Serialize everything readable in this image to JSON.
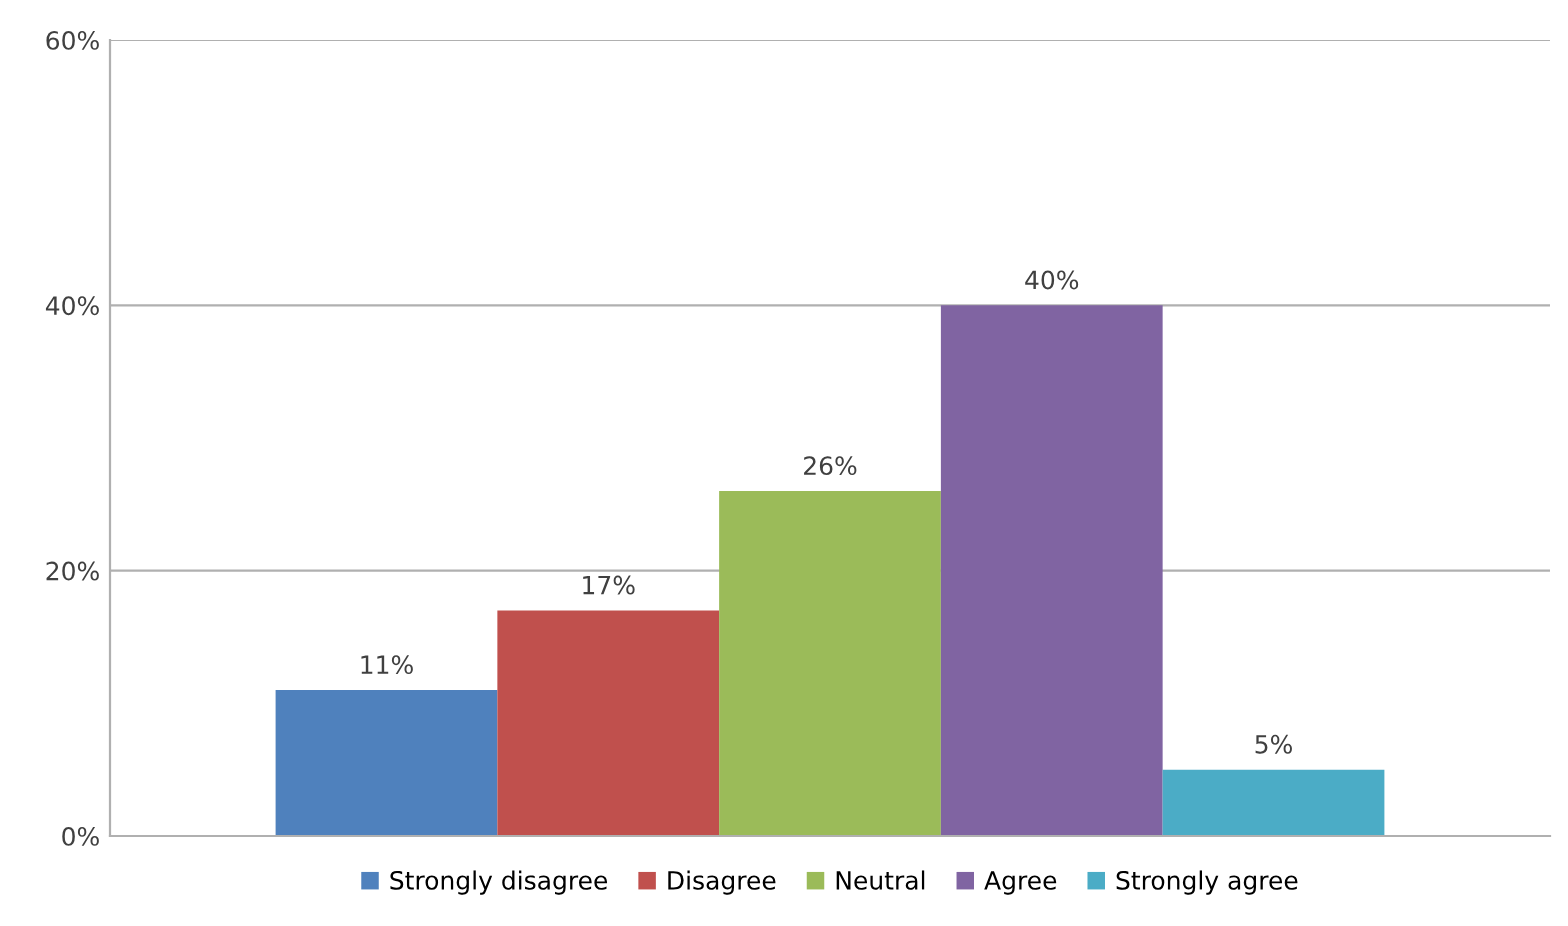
{
  "chart_data": {
    "type": "bar",
    "categories": [
      null
    ],
    "series": [
      {
        "name": "Strongly disagree",
        "color": "#4f81bd",
        "values": [
          11
        ],
        "value_labels": [
          "11%"
        ]
      },
      {
        "name": "Disagree",
        "color": "#c0504d",
        "values": [
          17
        ],
        "value_labels": [
          "17%"
        ]
      },
      {
        "name": "Neutral",
        "color": "#9bbb59",
        "values": [
          26
        ],
        "value_labels": [
          "26%"
        ]
      },
      {
        "name": "Agree",
        "color": "#8064a2",
        "values": [
          40
        ],
        "value_labels": [
          "40%"
        ]
      },
      {
        "name": "Strongly agree",
        "color": "#4bacc6",
        "values": [
          5
        ],
        "value_labels": [
          "5%"
        ]
      }
    ],
    "ylim": [
      0,
      60
    ],
    "yticks": [
      {
        "value": 0,
        "label": "0%"
      },
      {
        "value": 20,
        "label": "20%"
      },
      {
        "value": 40,
        "label": "40%"
      },
      {
        "value": 60,
        "label": "60%"
      }
    ],
    "grid": "y",
    "legend": "bottom"
  }
}
